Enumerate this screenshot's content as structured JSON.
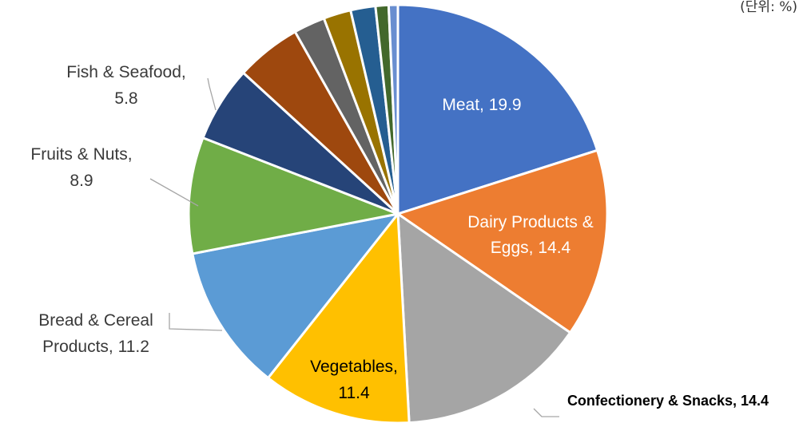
{
  "unit_note": "(단위: %)",
  "chart_data": {
    "type": "pie",
    "title": "",
    "slices": [
      {
        "name": "Meat",
        "value": 19.9,
        "color": "#4472C4",
        "label_lines": [
          "Meat, 19.9"
        ]
      },
      {
        "name": "Dairy Products & Eggs",
        "value": 14.4,
        "color": "#ED7D31",
        "label_lines": [
          "Dairy Products &",
          "Eggs, 14.4"
        ]
      },
      {
        "name": "Confectionery & Snacks",
        "value": 14.4,
        "color": "#A5A5A5",
        "label_lines": [
          "Confectionery & Snacks, 14.4"
        ]
      },
      {
        "name": "Vegetables",
        "value": 11.4,
        "color": "#FFC000",
        "label_lines": [
          "Vegetables,",
          "11.4"
        ]
      },
      {
        "name": "Bread & Cereal Products",
        "value": 11.2,
        "color": "#5B9BD5",
        "label_lines": [
          "Bread & Cereal",
          "Products, 11.2"
        ]
      },
      {
        "name": "Fruits & Nuts",
        "value": 8.9,
        "color": "#70AD47",
        "label_lines": [
          "Fruits & Nuts,",
          "8.9"
        ]
      },
      {
        "name": "Fish & Seafood",
        "value": 5.8,
        "color": "#264478",
        "label_lines": [
          "Fish & Seafood,",
          "5.8"
        ]
      },
      {
        "name": "",
        "value": 5.0,
        "color": "#9E480E",
        "label_lines": []
      },
      {
        "name": "",
        "value": 2.4,
        "color": "#636363",
        "label_lines": []
      },
      {
        "name": "",
        "value": 2.1,
        "color": "#997300",
        "label_lines": []
      },
      {
        "name": "",
        "value": 1.9,
        "color": "#255E91",
        "label_lines": []
      },
      {
        "name": "",
        "value": 1.0,
        "color": "#43682B",
        "label_lines": []
      },
      {
        "name": "",
        "value": 0.7,
        "color": "#698ED0",
        "label_lines": []
      }
    ]
  }
}
